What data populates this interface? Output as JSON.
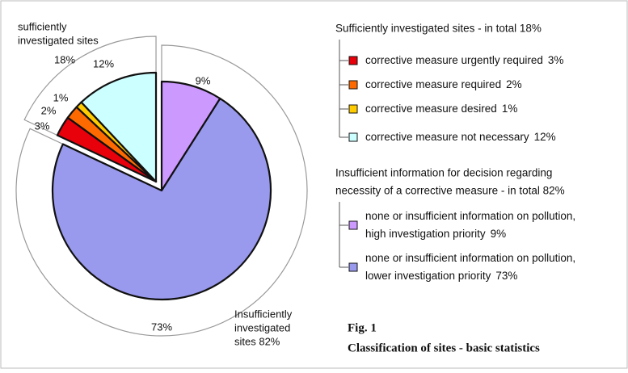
{
  "chart_data": {
    "type": "pie",
    "categories": [
      "corrective measure urgently required",
      "corrective measure required",
      "corrective measure desired",
      "corrective measure not necessary",
      [
        "none or insufficient information on pollution,",
        "high investigation priority"
      ],
      [
        "none or insufficient information on pollution,",
        "lower investigation priority"
      ]
    ],
    "values": [
      3,
      2,
      1,
      12,
      9,
      73
    ],
    "value_labels": [
      "3%",
      "2%",
      "1%",
      "12%",
      "9%",
      "73%"
    ],
    "colors": [
      "#e8000b",
      "#ff6a00",
      "#ffcc00",
      "#ccffff",
      "#cc99ff",
      "#9999ee"
    ],
    "groups": [
      {
        "label": [
          "sufficiently",
          "investigated sites"
        ],
        "value": 18,
        "value_label": "18%",
        "legend_title": [
          "Sufficiently investigated sites - in total 18%"
        ],
        "members": [
          0,
          1,
          2,
          3
        ]
      },
      {
        "label": [
          "Insufficiently",
          "investigated",
          "sites 82%"
        ],
        "value": 82,
        "legend_title": [
          "Insufficient information for decision regarding",
          "necessity of a corrective measure - in total 82%"
        ],
        "members": [
          4,
          5
        ]
      }
    ],
    "figure_label": "Fig. 1",
    "title": "Classification of sites - basic statistics"
  }
}
